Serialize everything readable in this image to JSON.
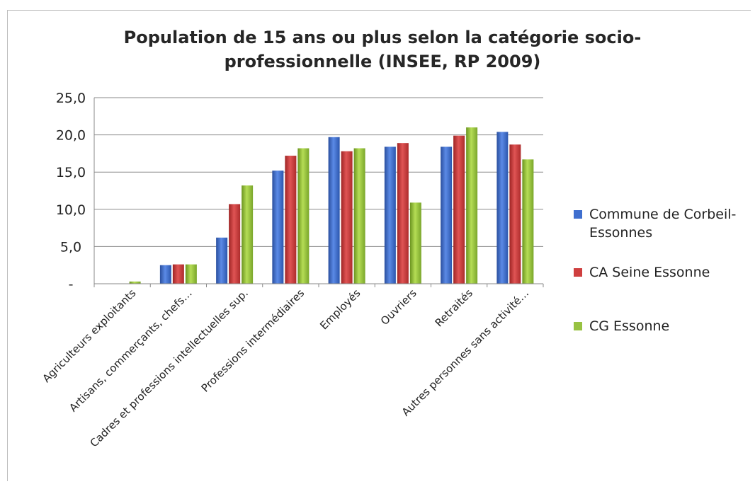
{
  "chart_data": {
    "type": "bar",
    "title_lines": [
      "Population de 15 ans ou plus selon la catégorie socio-",
      "professionnelle (INSEE, RP 2009)"
    ],
    "categories": [
      "Agriculteurs exploitants",
      "Artisans, commerçants, chefs…",
      "Cadres et professions intellectuelles sup.",
      "Professions intermédiaires",
      "Employés",
      "Ouvriers",
      "Retraités",
      "Autres personnes sans activité…"
    ],
    "series": [
      {
        "name": "Commune de Corbeil-Essonnes",
        "legend_lines": [
          "Commune de Corbeil-",
          "Essonnes"
        ],
        "color": "#3f6fcf",
        "values": [
          0.0,
          2.5,
          6.2,
          15.2,
          19.7,
          18.4,
          18.4,
          20.4
        ]
      },
      {
        "name": "CA Seine Essonne",
        "legend_lines": [
          "CA Seine Essonne"
        ],
        "color": "#cf3f3f",
        "values": [
          0.0,
          2.6,
          10.7,
          17.2,
          17.8,
          18.9,
          19.9,
          18.7
        ]
      },
      {
        "name": "CG Essonne",
        "legend_lines": [
          "CG Essonne"
        ],
        "color": "#98c242",
        "values": [
          0.3,
          2.6,
          13.2,
          18.2,
          18.2,
          10.9,
          21.0,
          16.7
        ]
      }
    ],
    "y_ticks": [
      {
        "value": 0,
        "label": "-"
      },
      {
        "value": 5,
        "label": "5,0"
      },
      {
        "value": 10,
        "label": "10,0"
      },
      {
        "value": 15,
        "label": "15,0"
      },
      {
        "value": 20,
        "label": "20,0"
      },
      {
        "value": 25,
        "label": "25,0"
      }
    ],
    "ylim": [
      0,
      25
    ],
    "grid": true,
    "legend_position": "right"
  }
}
